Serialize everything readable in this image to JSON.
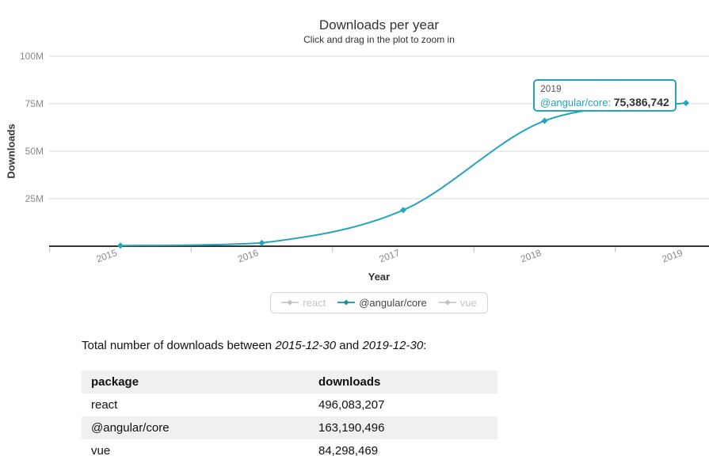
{
  "colors": {
    "accent": "#23a5ba",
    "accent_dark": "#1b8ba0",
    "muted_line": "#d0d0d0",
    "muted_marker": "#c0c0c0",
    "muted_text": "#c4c4c4",
    "grid": "#d9d9d9",
    "axis_line": "#333333",
    "tick": "#a9bdc4",
    "tick_label": "#888888",
    "stripe": "#f0f0f0"
  },
  "chart_data": {
    "type": "line",
    "title": "Downloads per year",
    "subtitle": "Click and drag in the plot to zoom in",
    "xlabel": "Year",
    "ylabel": "Downloads",
    "x": [
      2015,
      2016,
      2017,
      2018,
      2019
    ],
    "xlim": [
      2014.5,
      2019.16
    ],
    "ylim": [
      0,
      100000000
    ],
    "yticks": [
      {
        "value": 25000000,
        "label": "25M"
      },
      {
        "value": 50000000,
        "label": "50M"
      },
      {
        "value": 75000000,
        "label": "75M"
      },
      {
        "value": 100000000,
        "label": "100M"
      }
    ],
    "grid": true,
    "legend_position": "bottom-center",
    "series": [
      {
        "name": "react",
        "visible": false,
        "values": null
      },
      {
        "name": "@angular/core",
        "visible": true,
        "color": "#23a5ba",
        "values": [
          300000,
          1700000,
          19000000,
          66000000,
          75386742
        ]
      },
      {
        "name": "vue",
        "visible": false,
        "values": null
      }
    ],
    "tooltip": {
      "x_label": "2019",
      "series_label": "@angular/core: ",
      "value": "75,386,742"
    }
  },
  "summary": {
    "prefix": "Total number of downloads between ",
    "start_date": "2015-12-30",
    "middle": " and ",
    "end_date": "2019-12-30",
    "suffix": ":"
  },
  "table": {
    "headers": [
      "package",
      "downloads"
    ],
    "rows": [
      [
        "react",
        "496,083,207"
      ],
      [
        "@angular/core",
        "163,190,496"
      ],
      [
        "vue",
        "84,298,469"
      ]
    ]
  }
}
